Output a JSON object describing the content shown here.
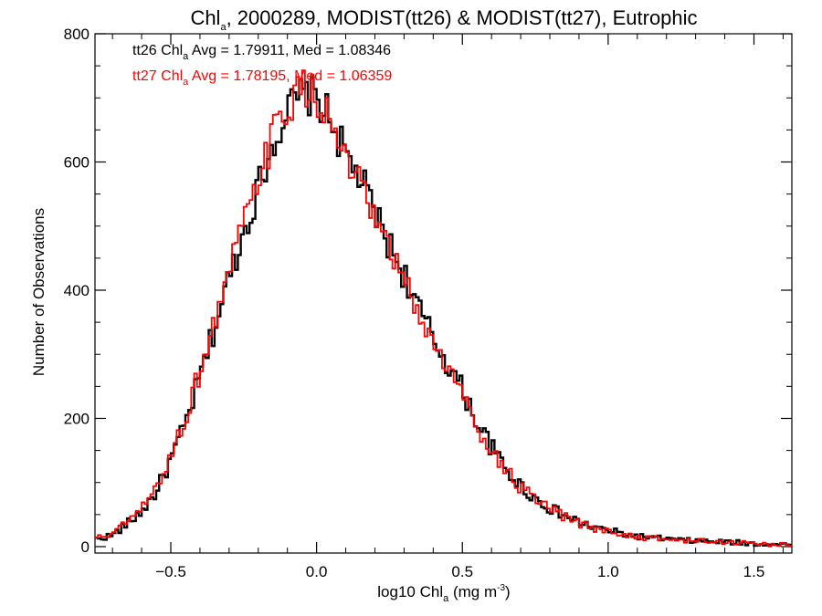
{
  "chart_data": {
    "type": "line",
    "title_prefix": "Chl",
    "title_subscript": "a",
    "title_suffix": ", 2000289, MODIST(tt26) & MODIST(tt27), Eutrophic",
    "xlabel_prefix": "log10 Chl",
    "xlabel_subscript": "a",
    "xlabel_mid": " (mg m",
    "xlabel_superscript": "-3",
    "xlabel_suffix": ")",
    "ylabel": "Number of Observations",
    "xlim": [
      -0.76,
      1.63
    ],
    "ylim": [
      -10,
      800
    ],
    "x_ticks": [
      -0.5,
      0.0,
      0.5,
      1.0,
      1.5
    ],
    "x_tick_labels": [
      "−0.5",
      "0.0",
      "0.5",
      "1.0",
      "1.5"
    ],
    "y_ticks": [
      0,
      200,
      400,
      600,
      800
    ],
    "y_tick_labels": [
      "0",
      "200",
      "400",
      "600",
      "800"
    ],
    "grid": false,
    "step_histogram": true,
    "bin_width": 0.01,
    "annotations": [
      {
        "prefix": "tt26 Chl",
        "subscript": "a",
        "suffix": " Avg = 1.79911, Med = 1.08346",
        "color": "#000000"
      },
      {
        "prefix": "tt27 Chl",
        "subscript": "a",
        "suffix": " Avg = 1.78195, Med = 1.06359",
        "color": "#ff0000"
      }
    ],
    "series": [
      {
        "name": "tt26",
        "color": "#000000",
        "x": [
          -0.75,
          -0.7,
          -0.65,
          -0.6,
          -0.55,
          -0.5,
          -0.45,
          -0.4,
          -0.35,
          -0.3,
          -0.25,
          -0.2,
          -0.15,
          -0.1,
          -0.05,
          0.0,
          0.05,
          0.1,
          0.15,
          0.2,
          0.25,
          0.3,
          0.35,
          0.4,
          0.45,
          0.5,
          0.55,
          0.6,
          0.65,
          0.7,
          0.75,
          0.8,
          0.85,
          0.9,
          0.95,
          1.0,
          1.05,
          1.1,
          1.15,
          1.2,
          1.25,
          1.3,
          1.35,
          1.4,
          1.45,
          1.5,
          1.55,
          1.6
        ],
        "y": [
          12,
          18,
          35,
          55,
          85,
          135,
          190,
          265,
          340,
          420,
          490,
          560,
          630,
          680,
          705,
          700,
          665,
          610,
          575,
          520,
          470,
          425,
          370,
          325,
          285,
          245,
          195,
          155,
          120,
          95,
          75,
          60,
          48,
          38,
          30,
          25,
          20,
          16,
          14,
          12,
          10,
          9,
          8,
          7,
          6,
          5,
          4,
          3
        ]
      },
      {
        "name": "tt27",
        "color": "#ff0000",
        "x": [
          -0.75,
          -0.7,
          -0.65,
          -0.6,
          -0.55,
          -0.5,
          -0.45,
          -0.4,
          -0.35,
          -0.3,
          -0.25,
          -0.2,
          -0.15,
          -0.1,
          -0.05,
          0.0,
          0.05,
          0.1,
          0.15,
          0.2,
          0.25,
          0.3,
          0.35,
          0.4,
          0.45,
          0.5,
          0.55,
          0.6,
          0.65,
          0.7,
          0.75,
          0.8,
          0.85,
          0.9,
          0.95,
          1.0,
          1.05,
          1.1,
          1.15,
          1.2,
          1.25,
          1.3,
          1.35,
          1.4,
          1.45,
          1.5,
          1.55,
          1.6
        ],
        "y": [
          14,
          20,
          38,
          58,
          90,
          142,
          200,
          275,
          350,
          430,
          500,
          568,
          640,
          688,
          712,
          705,
          660,
          600,
          560,
          505,
          460,
          415,
          362,
          318,
          278,
          238,
          190,
          150,
          118,
          92,
          72,
          58,
          46,
          36,
          29,
          24,
          19,
          15,
          13,
          11,
          10,
          9,
          8,
          7,
          6,
          5,
          4,
          3
        ]
      }
    ]
  }
}
